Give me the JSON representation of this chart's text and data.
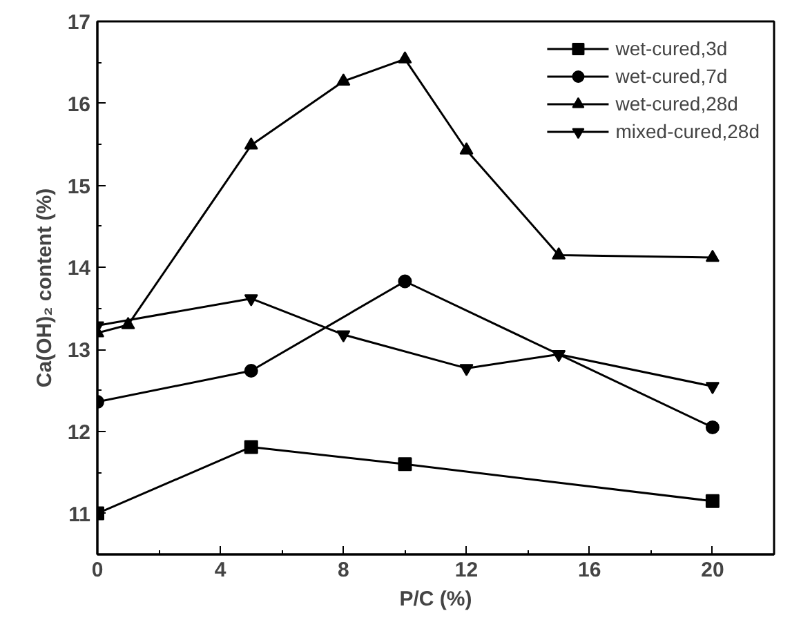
{
  "chart_data": {
    "type": "line",
    "xlabel": "P/C (%)",
    "ylabel": "Ca(OH)₂ content (%)",
    "xlim": [
      0,
      22
    ],
    "ylim": [
      10.5,
      17
    ],
    "xticks": [
      0,
      4,
      8,
      12,
      16,
      20
    ],
    "yticks": [
      11,
      12,
      13,
      14,
      15,
      16,
      17
    ],
    "grid": false,
    "legend": "top right",
    "line_style": "solid",
    "series": [
      {
        "name": "wet-cured,3d",
        "color": "#000000",
        "marker": "square",
        "x": [
          0,
          5,
          10,
          20
        ],
        "values": [
          11.0,
          11.81,
          11.6,
          11.15
        ]
      },
      {
        "name": "wet-cured,7d",
        "color": "#000000",
        "marker": "circle",
        "x": [
          0,
          5,
          10,
          20
        ],
        "values": [
          12.36,
          12.74,
          13.83,
          12.05
        ]
      },
      {
        "name": "wet-cured,28d",
        "color": "#000000",
        "marker": "triangle",
        "x": [
          0,
          1,
          5,
          8,
          10,
          12,
          15,
          20
        ],
        "values": [
          13.2,
          13.3,
          15.49,
          16.27,
          16.54,
          15.43,
          14.15,
          14.12
        ]
      },
      {
        "name": "mixed-cured,28d",
        "color": "#000000",
        "marker": "triangle",
        "x": [
          0,
          5,
          8,
          12,
          15,
          20
        ],
        "values": [
          13.29,
          13.62,
          13.18,
          12.77,
          12.94,
          12.55
        ]
      }
    ]
  }
}
